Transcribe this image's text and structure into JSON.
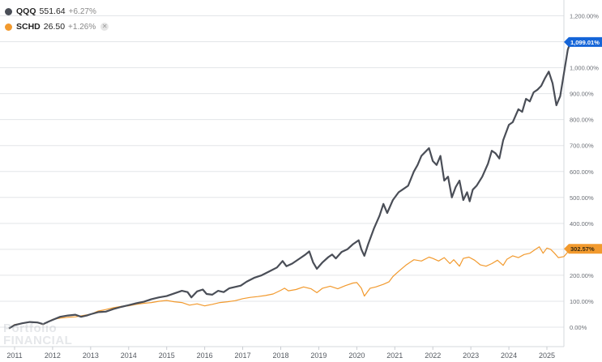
{
  "legend": {
    "qqq": {
      "symbol": "QQQ",
      "price": "551.64",
      "change": "+6.27%",
      "color": "#4a4e57"
    },
    "schd": {
      "symbol": "SCHD",
      "price": "26.50",
      "change": "+1.26%",
      "color": "#f29a2e"
    }
  },
  "watermark": {
    "line1": "Portfolio",
    "line2": "FINANCIAL"
  },
  "chart_data": {
    "type": "line",
    "ylabel": "",
    "xlabel": "",
    "ylim": [
      -50,
      1250
    ],
    "xlim": [
      2010.8,
      2025.75
    ],
    "y_ticks": [
      0,
      100,
      200,
      300,
      400,
      500,
      600,
      700,
      800,
      900,
      1000,
      1100,
      1200
    ],
    "y_tick_labels": [
      "0.00%",
      "100.00%",
      "200.00%",
      "300.00%",
      "400.00%",
      "500.00%",
      "600.00%",
      "700.00%",
      "800.00%",
      "900.00%",
      "1,000.00%",
      "1,100.00%",
      "1,200.00%"
    ],
    "x_ticks": [
      2011,
      2012,
      2013,
      2014,
      2015,
      2016,
      2017,
      2018,
      2019,
      2020,
      2021,
      2022,
      2023,
      2024,
      2025
    ],
    "x_tick_labels": [
      "2011",
      "2012",
      "2013",
      "2014",
      "2015",
      "2016",
      "2017",
      "2018",
      "2019",
      "2020",
      "2021",
      "2022",
      "2023",
      "2024",
      "2025"
    ],
    "series": [
      {
        "name": "QQQ",
        "end_label": "1,099.01%",
        "color": "#4a4e57",
        "points": [
          [
            2010.85,
            -5
          ],
          [
            2011.0,
            8
          ],
          [
            2011.2,
            15
          ],
          [
            2011.4,
            20
          ],
          [
            2011.6,
            18
          ],
          [
            2011.75,
            12
          ],
          [
            2011.9,
            22
          ],
          [
            2012.0,
            28
          ],
          [
            2012.2,
            40
          ],
          [
            2012.4,
            45
          ],
          [
            2012.6,
            48
          ],
          [
            2012.75,
            40
          ],
          [
            2012.9,
            45
          ],
          [
            2013.0,
            50
          ],
          [
            2013.2,
            58
          ],
          [
            2013.4,
            60
          ],
          [
            2013.6,
            70
          ],
          [
            2013.8,
            78
          ],
          [
            2014.0,
            85
          ],
          [
            2014.2,
            92
          ],
          [
            2014.4,
            98
          ],
          [
            2014.6,
            108
          ],
          [
            2014.8,
            115
          ],
          [
            2015.0,
            120
          ],
          [
            2015.2,
            130
          ],
          [
            2015.4,
            140
          ],
          [
            2015.55,
            135
          ],
          [
            2015.65,
            115
          ],
          [
            2015.8,
            138
          ],
          [
            2015.95,
            145
          ],
          [
            2016.05,
            128
          ],
          [
            2016.2,
            125
          ],
          [
            2016.35,
            140
          ],
          [
            2016.5,
            135
          ],
          [
            2016.65,
            150
          ],
          [
            2016.8,
            155
          ],
          [
            2016.95,
            160
          ],
          [
            2017.1,
            175
          ],
          [
            2017.3,
            190
          ],
          [
            2017.5,
            200
          ],
          [
            2017.7,
            215
          ],
          [
            2017.9,
            230
          ],
          [
            2018.05,
            255
          ],
          [
            2018.15,
            235
          ],
          [
            2018.3,
            245
          ],
          [
            2018.5,
            265
          ],
          [
            2018.65,
            280
          ],
          [
            2018.75,
            292
          ],
          [
            2018.85,
            250
          ],
          [
            2018.95,
            225
          ],
          [
            2019.1,
            250
          ],
          [
            2019.25,
            270
          ],
          [
            2019.35,
            280
          ],
          [
            2019.45,
            265
          ],
          [
            2019.6,
            290
          ],
          [
            2019.75,
            300
          ],
          [
            2019.9,
            320
          ],
          [
            2020.05,
            335
          ],
          [
            2020.12,
            300
          ],
          [
            2020.2,
            275
          ],
          [
            2020.3,
            320
          ],
          [
            2020.45,
            380
          ],
          [
            2020.6,
            430
          ],
          [
            2020.7,
            475
          ],
          [
            2020.8,
            440
          ],
          [
            2020.95,
            490
          ],
          [
            2021.1,
            520
          ],
          [
            2021.2,
            530
          ],
          [
            2021.35,
            545
          ],
          [
            2021.5,
            600
          ],
          [
            2021.6,
            625
          ],
          [
            2021.7,
            660
          ],
          [
            2021.8,
            675
          ],
          [
            2021.9,
            690
          ],
          [
            2022.0,
            640
          ],
          [
            2022.1,
            625
          ],
          [
            2022.2,
            660
          ],
          [
            2022.3,
            565
          ],
          [
            2022.4,
            580
          ],
          [
            2022.5,
            500
          ],
          [
            2022.6,
            540
          ],
          [
            2022.7,
            565
          ],
          [
            2022.8,
            490
          ],
          [
            2022.9,
            520
          ],
          [
            2022.97,
            485
          ],
          [
            2023.05,
            530
          ],
          [
            2023.15,
            545
          ],
          [
            2023.3,
            580
          ],
          [
            2023.45,
            630
          ],
          [
            2023.55,
            680
          ],
          [
            2023.65,
            670
          ],
          [
            2023.75,
            650
          ],
          [
            2023.85,
            720
          ],
          [
            2024.0,
            780
          ],
          [
            2024.1,
            790
          ],
          [
            2024.25,
            840
          ],
          [
            2024.35,
            830
          ],
          [
            2024.45,
            880
          ],
          [
            2024.55,
            870
          ],
          [
            2024.65,
            905
          ],
          [
            2024.75,
            915
          ],
          [
            2024.85,
            930
          ],
          [
            2024.95,
            960
          ],
          [
            2025.05,
            985
          ],
          [
            2025.15,
            940
          ],
          [
            2025.25,
            855
          ],
          [
            2025.35,
            890
          ],
          [
            2025.45,
            980
          ],
          [
            2025.55,
            1070
          ],
          [
            2025.62,
            1099
          ]
        ]
      },
      {
        "name": "SCHD",
        "end_label": "302.57%",
        "color": "#f29a2e",
        "points": [
          [
            2010.85,
            -5
          ],
          [
            2011.0,
            10
          ],
          [
            2011.2,
            15
          ],
          [
            2011.4,
            20
          ],
          [
            2011.6,
            18
          ],
          [
            2011.75,
            10
          ],
          [
            2011.9,
            22
          ],
          [
            2012.0,
            30
          ],
          [
            2012.2,
            35
          ],
          [
            2012.4,
            38
          ],
          [
            2012.6,
            40
          ],
          [
            2012.8,
            45
          ],
          [
            2013.0,
            50
          ],
          [
            2013.2,
            62
          ],
          [
            2013.4,
            68
          ],
          [
            2013.6,
            75
          ],
          [
            2013.8,
            80
          ],
          [
            2014.0,
            82
          ],
          [
            2014.2,
            88
          ],
          [
            2014.4,
            92
          ],
          [
            2014.6,
            95
          ],
          [
            2014.8,
            100
          ],
          [
            2015.0,
            103
          ],
          [
            2015.2,
            98
          ],
          [
            2015.4,
            95
          ],
          [
            2015.6,
            85
          ],
          [
            2015.8,
            90
          ],
          [
            2016.0,
            82
          ],
          [
            2016.2,
            88
          ],
          [
            2016.4,
            95
          ],
          [
            2016.6,
            98
          ],
          [
            2016.8,
            102
          ],
          [
            2017.0,
            110
          ],
          [
            2017.2,
            115
          ],
          [
            2017.4,
            118
          ],
          [
            2017.6,
            122
          ],
          [
            2017.8,
            128
          ],
          [
            2018.0,
            142
          ],
          [
            2018.1,
            150
          ],
          [
            2018.2,
            140
          ],
          [
            2018.4,
            145
          ],
          [
            2018.6,
            155
          ],
          [
            2018.8,
            148
          ],
          [
            2018.95,
            133
          ],
          [
            2019.1,
            150
          ],
          [
            2019.3,
            158
          ],
          [
            2019.5,
            148
          ],
          [
            2019.7,
            160
          ],
          [
            2019.9,
            170
          ],
          [
            2020.0,
            172
          ],
          [
            2020.12,
            150
          ],
          [
            2020.2,
            120
          ],
          [
            2020.35,
            150
          ],
          [
            2020.5,
            155
          ],
          [
            2020.7,
            165
          ],
          [
            2020.85,
            175
          ],
          [
            2020.95,
            195
          ],
          [
            2021.1,
            215
          ],
          [
            2021.3,
            240
          ],
          [
            2021.5,
            260
          ],
          [
            2021.7,
            255
          ],
          [
            2021.9,
            270
          ],
          [
            2022.0,
            265
          ],
          [
            2022.15,
            255
          ],
          [
            2022.3,
            268
          ],
          [
            2022.45,
            245
          ],
          [
            2022.55,
            260
          ],
          [
            2022.7,
            235
          ],
          [
            2022.8,
            265
          ],
          [
            2022.95,
            270
          ],
          [
            2023.1,
            258
          ],
          [
            2023.25,
            240
          ],
          [
            2023.4,
            235
          ],
          [
            2023.55,
            245
          ],
          [
            2023.7,
            258
          ],
          [
            2023.85,
            238
          ],
          [
            2023.95,
            262
          ],
          [
            2024.1,
            275
          ],
          [
            2024.25,
            268
          ],
          [
            2024.4,
            280
          ],
          [
            2024.55,
            285
          ],
          [
            2024.7,
            300
          ],
          [
            2024.8,
            310
          ],
          [
            2024.9,
            285
          ],
          [
            2025.0,
            305
          ],
          [
            2025.1,
            300
          ],
          [
            2025.2,
            285
          ],
          [
            2025.3,
            268
          ],
          [
            2025.45,
            272
          ],
          [
            2025.62,
            302
          ]
        ]
      }
    ]
  }
}
